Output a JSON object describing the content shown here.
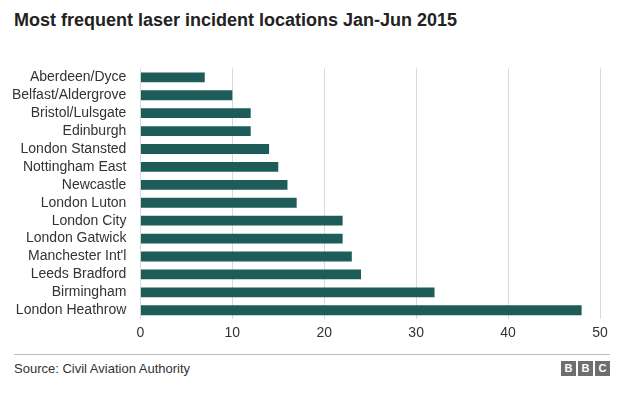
{
  "chart_data": {
    "type": "bar",
    "title": "Most frequent laser incident locations Jan-Jun 2015",
    "orientation": "horizontal",
    "categories": [
      "Aberdeen/Dyce",
      "Belfast/Aldergrove",
      "Bristol/Lulsgate",
      "Edinburgh",
      "London Stansted",
      "Nottingham East",
      "Newcastle",
      "London Luton",
      "London City",
      "London Gatwick",
      "Manchester Int'l",
      "Leeds Bradford",
      "Birmingham",
      "London Heathrow"
    ],
    "values": [
      7,
      10,
      12,
      12,
      14,
      15,
      16,
      17,
      22,
      22,
      23,
      24,
      32,
      48
    ],
    "color": "#1d5c58",
    "xlim": [
      0,
      50
    ],
    "xticks": [
      0,
      10,
      20,
      30,
      40,
      50
    ],
    "grid": true,
    "source": "Source: Civil Aviation Authority",
    "logo": "BBC"
  }
}
